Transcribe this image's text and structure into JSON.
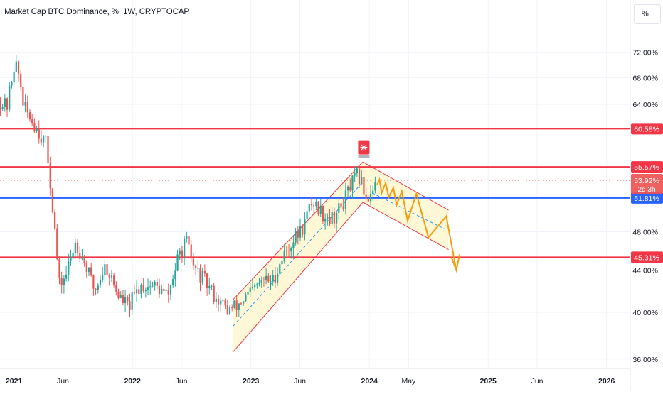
{
  "header": {
    "title": "Market Cap BTC Dominance, %, 1W, CRYPTOCAP",
    "unit_button": "%"
  },
  "colors": {
    "up": "#26a69a",
    "down": "#ef5350",
    "red_line": "#f23645",
    "blue_line": "#2962ff",
    "projection": "#f59c0c",
    "channel_fill": "#fff7d1",
    "channel_mid": "#2196f3",
    "grid": "#f0f3fa",
    "axis_text": "#131722",
    "alarm": "#f23645"
  },
  "chart_data": {
    "type": "candlestick",
    "title": "Market Cap BTC Dominance, %, 1W, CRYPTOCAP",
    "y_axis": {
      "scale": "log",
      "ticks": [
        "36.00%",
        "40.00%",
        "44.00%",
        "48.00%",
        "64.00%",
        "68.00%",
        "72.00%"
      ],
      "tick_values": [
        36,
        40,
        44,
        48,
        64,
        68,
        72
      ],
      "range": [
        35.3,
        76.0
      ]
    },
    "x_axis": {
      "ticks": [
        "2021",
        "Jun",
        "2022",
        "Jun",
        "2023",
        "Jun",
        "2024",
        "May",
        "2025",
        "Jun",
        "2026"
      ],
      "tick_dates": [
        "2021-01-01",
        "2021-06-01",
        "2022-01-01",
        "2022-06-01",
        "2023-01-01",
        "2023-06-01",
        "2024-01-01",
        "2024-05-01",
        "2025-01-01",
        "2025-06-01",
        "2026-01-01"
      ],
      "range": [
        "2020-11-19",
        "2026-03-15"
      ]
    },
    "horizontal_levels": [
      {
        "value": 60.58,
        "label": "60.58%",
        "color": "#f23645"
      },
      {
        "value": 55.57,
        "label": "55.57%",
        "color": "#f23645"
      },
      {
        "value": 51.81,
        "label": "51.81%",
        "color": "#2962ff"
      },
      {
        "value": 45.31,
        "label": "45.31%",
        "color": "#f23645"
      }
    ],
    "last_price": {
      "value": 53.92,
      "label": "53.92%",
      "countdown": "2d 3h"
    },
    "anchors": [
      [
        "2020-11-20",
        64.5
      ],
      [
        "2020-12-10",
        63.5
      ],
      [
        "2021-01-03",
        70.5
      ],
      [
        "2021-01-18",
        68.0
      ],
      [
        "2021-02-01",
        63.5
      ],
      [
        "2021-03-01",
        61.5
      ],
      [
        "2021-04-10",
        58.5
      ],
      [
        "2021-05-05",
        49.0
      ],
      [
        "2021-05-20",
        42.5
      ],
      [
        "2021-06-10",
        43.5
      ],
      [
        "2021-07-10",
        47.0
      ],
      [
        "2021-08-10",
        44.5
      ],
      [
        "2021-09-07",
        42.0
      ],
      [
        "2021-10-10",
        44.5
      ],
      [
        "2021-11-20",
        41.5
      ],
      [
        "2021-12-20",
        40.5
      ],
      [
        "2022-01-25",
        42.5
      ],
      [
        "2022-03-10",
        42.5
      ],
      [
        "2022-04-20",
        41.5
      ],
      [
        "2022-05-25",
        45.5
      ],
      [
        "2022-06-15",
        47.0
      ],
      [
        "2022-07-10",
        44.2
      ],
      [
        "2022-08-10",
        43.0
      ],
      [
        "2022-09-12",
        41.5
      ],
      [
        "2022-10-20",
        40.2
      ],
      [
        "2022-11-15",
        40.5
      ],
      [
        "2022-12-20",
        41.5
      ],
      [
        "2023-02-10",
        43.0
      ],
      [
        "2023-03-10",
        43.0
      ],
      [
        "2023-04-10",
        45.5
      ],
      [
        "2023-05-10",
        47.0
      ],
      [
        "2023-06-10",
        48.5
      ],
      [
        "2023-07-10",
        51.5
      ],
      [
        "2023-08-10",
        50.0
      ],
      [
        "2023-09-10",
        49.5
      ],
      [
        "2023-10-10",
        51.0
      ],
      [
        "2023-11-01",
        53.0
      ],
      [
        "2023-11-25",
        54.5
      ],
      [
        "2023-12-10",
        53.5
      ],
      [
        "2023-12-25",
        51.5
      ],
      [
        "2024-01-08",
        53.0
      ],
      [
        "2024-01-25",
        53.92
      ]
    ],
    "ascending_channel": {
      "upper": [
        [
          "2022-11-08",
          41.2
        ],
        [
          "2023-12-12",
          56.2
        ]
      ],
      "lower": [
        [
          "2022-11-08",
          36.6
        ],
        [
          "2023-12-12",
          51.3
        ]
      ],
      "mid": [
        [
          "2022-11-08",
          38.8
        ],
        [
          "2023-12-12",
          53.7
        ]
      ]
    },
    "descending_channel": {
      "upper": [
        [
          "2023-12-12",
          56.2
        ],
        [
          "2024-09-01",
          50.4
        ]
      ],
      "lower": [
        [
          "2023-12-12",
          51.3
        ],
        [
          "2024-09-01",
          46.1
        ]
      ],
      "mid": [
        [
          "2024-01-10",
          52.4
        ],
        [
          "2024-08-20",
          48.3
        ]
      ]
    },
    "projection_path": [
      [
        "2024-01-25",
        53.4
      ],
      [
        "2024-02-01",
        54.0
      ],
      [
        "2024-02-08",
        52.4
      ],
      [
        "2024-02-20",
        53.6
      ],
      [
        "2024-03-01",
        51.9
      ],
      [
        "2024-03-15",
        53.0
      ],
      [
        "2024-03-25",
        51.0
      ],
      [
        "2024-04-10",
        52.6
      ],
      [
        "2024-04-28",
        49.2
      ],
      [
        "2024-05-25",
        52.3
      ],
      [
        "2024-07-01",
        47.4
      ],
      [
        "2024-08-25",
        49.7
      ],
      [
        "2024-09-25",
        44.0
      ]
    ],
    "projection_arrowhead": [
      [
        "2024-09-10",
        45.3
      ],
      [
        "2024-10-05",
        45.6
      ]
    ],
    "alarm_marker": {
      "date": "2023-12-15",
      "value": 57.8,
      "icon": "alarm-light-icon"
    }
  }
}
